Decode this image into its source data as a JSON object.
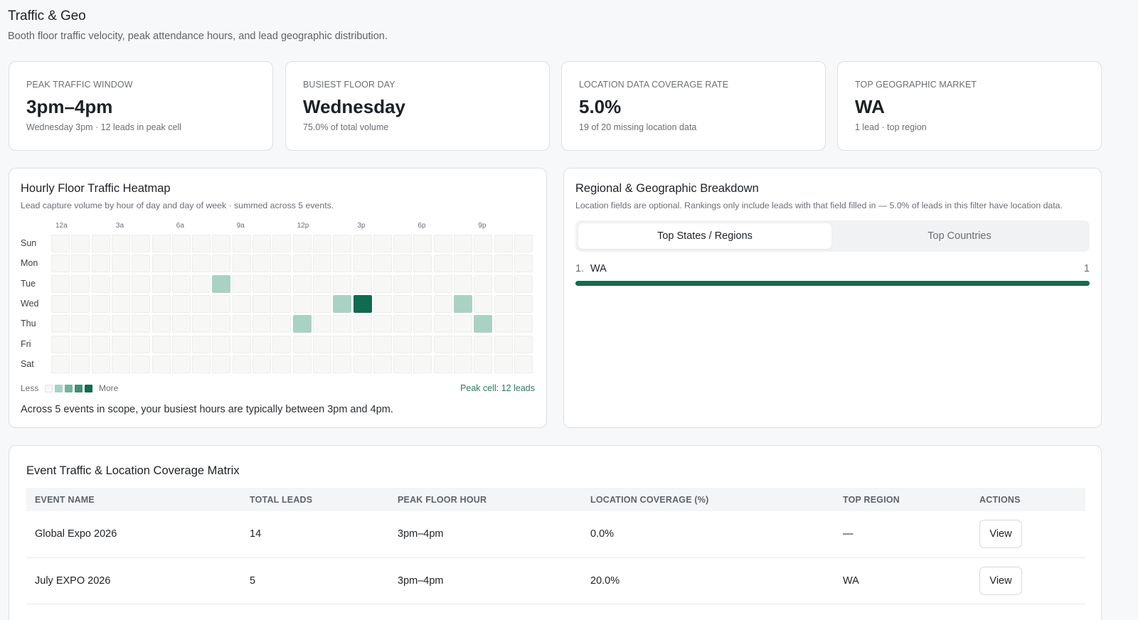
{
  "page": {
    "title": "Traffic & Geo",
    "subtitle": "Booth floor traffic velocity, peak attendance hours, and lead geographic distribution."
  },
  "kpis": [
    {
      "label": "PEAK TRAFFIC WINDOW",
      "value": "3pm–4pm",
      "sub": "Wednesday 3pm · 12 leads in peak cell"
    },
    {
      "label": "BUSIEST FLOOR DAY",
      "value": "Wednesday",
      "sub": "75.0% of total volume"
    },
    {
      "label": "LOCATION DATA COVERAGE RATE",
      "value": "5.0%",
      "sub": "19 of 20 missing location data"
    },
    {
      "label": "TOP GEOGRAPHIC MARKET",
      "value": "WA",
      "sub": "1 lead · top region"
    }
  ],
  "heatmap": {
    "title": "Hourly Floor Traffic Heatmap",
    "subtitle": "Lead capture volume by hour of day and day of week · summed across 5 events.",
    "hour_labels": [
      "12a",
      "3a",
      "6a",
      "9a",
      "12p",
      "3p",
      "6p",
      "9p"
    ],
    "days": [
      "Sun",
      "Mon",
      "Tue",
      "Wed",
      "Thu",
      "Fri",
      "Sat"
    ],
    "legend_less": "Less",
    "legend_more": "More",
    "legend_colors": [
      "#f7f7f5",
      "#a9d2c4",
      "#75b39e",
      "#3f8f73",
      "#116b50"
    ],
    "peak_cell": "Peak cell: 12 leads",
    "note": "Across 5 events in scope, your busiest hours are typically between 3pm and 4pm.",
    "active_cells": [
      {
        "day": "Tue",
        "hour": 8,
        "level": 1
      },
      {
        "day": "Wed",
        "hour": 14,
        "level": 1
      },
      {
        "day": "Wed",
        "hour": 15,
        "level": 4
      },
      {
        "day": "Wed",
        "hour": 20,
        "level": 1
      },
      {
        "day": "Thu",
        "hour": 12,
        "level": 1
      },
      {
        "day": "Thu",
        "hour": 21,
        "level": 1
      }
    ]
  },
  "regional": {
    "title": "Regional & Geographic Breakdown",
    "subtitle": "Location fields are optional. Rankings only include leads with that field filled in — 5.0% of leads in this filter have location data.",
    "tabs": [
      "Top States / Regions",
      "Top Countries"
    ],
    "rows": [
      {
        "rank": "1.",
        "name": "WA",
        "count": "1",
        "share": 1.0
      }
    ]
  },
  "matrix": {
    "title": "Event Traffic & Location Coverage Matrix",
    "columns": [
      "EVENT NAME",
      "TOTAL LEADS",
      "PEAK FLOOR HOUR",
      "LOCATION COVERAGE (%)",
      "TOP REGION",
      "ACTIONS"
    ],
    "rows": [
      {
        "event": "Global Expo 2026",
        "leads": "14",
        "peak": "3pm–4pm",
        "coverage": "0.0%",
        "region": "—",
        "action": "View"
      },
      {
        "event": "July EXPO 2026",
        "leads": "5",
        "peak": "3pm–4pm",
        "coverage": "20.0%",
        "region": "WA",
        "action": "View"
      }
    ]
  },
  "colors": {
    "accent": "#17694f"
  }
}
